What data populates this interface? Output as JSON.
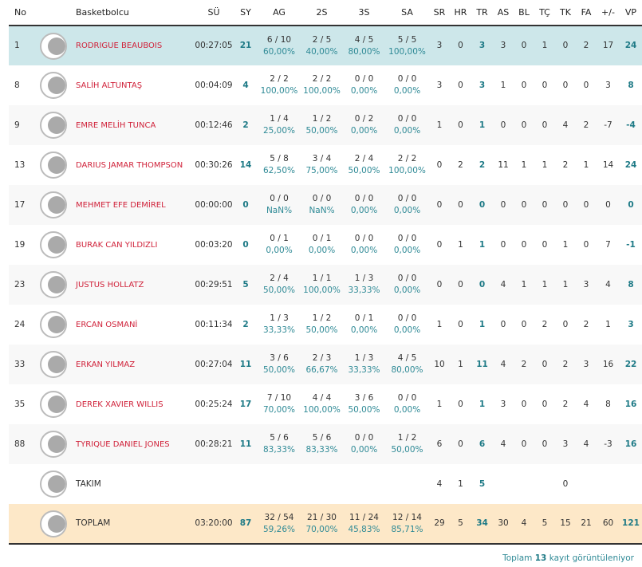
{
  "headers": [
    "No",
    "",
    "Basketbolcu",
    "SÜ",
    "SY",
    "AG",
    "2S",
    "3S",
    "SA",
    "SR",
    "HR",
    "TR",
    "AS",
    "BL",
    "TÇ",
    "TK",
    "FA",
    "+/-",
    "VP"
  ],
  "rows": [
    {
      "no": "1",
      "name": "RODRIGUE BEAUBOIS",
      "su": "00:27:05",
      "sy": "21",
      "ag": "6 / 10",
      "agp": "60,00%",
      "s2": "2 / 5",
      "s2p": "40,00%",
      "s3": "4 / 5",
      "s3p": "80,00%",
      "sa": "5 / 5",
      "sap": "100,00%",
      "sr": "3",
      "hr": "0",
      "tr": "3",
      "as": "3",
      "bl": "0",
      "tc": "1",
      "tk": "0",
      "fa": "2",
      "pm": "17",
      "vp": "24"
    },
    {
      "no": "8",
      "name": "SALİH ALTUNTAŞ",
      "su": "00:04:09",
      "sy": "4",
      "ag": "2 / 2",
      "agp": "100,00%",
      "s2": "2 / 2",
      "s2p": "100,00%",
      "s3": "0 / 0",
      "s3p": "0,00%",
      "sa": "0 / 0",
      "sap": "0,00%",
      "sr": "3",
      "hr": "0",
      "tr": "3",
      "as": "1",
      "bl": "0",
      "tc": "0",
      "tk": "0",
      "fa": "0",
      "pm": "3",
      "vp": "8"
    },
    {
      "no": "9",
      "name": "EMRE MELİH TUNCA",
      "su": "00:12:46",
      "sy": "2",
      "ag": "1 / 4",
      "agp": "25,00%",
      "s2": "1 / 2",
      "s2p": "50,00%",
      "s3": "0 / 2",
      "s3p": "0,00%",
      "sa": "0 / 0",
      "sap": "0,00%",
      "sr": "1",
      "hr": "0",
      "tr": "1",
      "as": "0",
      "bl": "0",
      "tc": "0",
      "tk": "4",
      "fa": "2",
      "pm": "-7",
      "vp": "-4"
    },
    {
      "no": "13",
      "name": "DARIUS JAMAR THOMPSON",
      "su": "00:30:26",
      "sy": "14",
      "ag": "5 / 8",
      "agp": "62,50%",
      "s2": "3 / 4",
      "s2p": "75,00%",
      "s3": "2 / 4",
      "s3p": "50,00%",
      "sa": "2 / 2",
      "sap": "100,00%",
      "sr": "0",
      "hr": "2",
      "tr": "2",
      "as": "11",
      "bl": "1",
      "tc": "1",
      "tk": "2",
      "fa": "1",
      "pm": "14",
      "vp": "24"
    },
    {
      "no": "17",
      "name": "MEHMET EFE DEMİREL",
      "su": "00:00:00",
      "sy": "0",
      "ag": "0 / 0",
      "agp": "NaN%",
      "s2": "0 / 0",
      "s2p": "NaN%",
      "s3": "0 / 0",
      "s3p": "0,00%",
      "sa": "0 / 0",
      "sap": "0,00%",
      "sr": "0",
      "hr": "0",
      "tr": "0",
      "as": "0",
      "bl": "0",
      "tc": "0",
      "tk": "0",
      "fa": "0",
      "pm": "0",
      "vp": "0"
    },
    {
      "no": "19",
      "name": "BURAK CAN YILDIZLI",
      "su": "00:03:20",
      "sy": "0",
      "ag": "0 / 1",
      "agp": "0,00%",
      "s2": "0 / 1",
      "s2p": "0,00%",
      "s3": "0 / 0",
      "s3p": "0,00%",
      "sa": "0 / 0",
      "sap": "0,00%",
      "sr": "0",
      "hr": "1",
      "tr": "1",
      "as": "0",
      "bl": "0",
      "tc": "0",
      "tk": "1",
      "fa": "0",
      "pm": "7",
      "vp": "-1"
    },
    {
      "no": "23",
      "name": "JUSTUS HOLLATZ",
      "su": "00:29:51",
      "sy": "5",
      "ag": "2 / 4",
      "agp": "50,00%",
      "s2": "1 / 1",
      "s2p": "100,00%",
      "s3": "1 / 3",
      "s3p": "33,33%",
      "sa": "0 / 0",
      "sap": "0,00%",
      "sr": "0",
      "hr": "0",
      "tr": "0",
      "as": "4",
      "bl": "1",
      "tc": "1",
      "tk": "1",
      "fa": "3",
      "pm": "4",
      "vp": "8"
    },
    {
      "no": "24",
      "name": "ERCAN OSMANİ",
      "su": "00:11:34",
      "sy": "2",
      "ag": "1 / 3",
      "agp": "33,33%",
      "s2": "1 / 2",
      "s2p": "50,00%",
      "s3": "0 / 1",
      "s3p": "0,00%",
      "sa": "0 / 0",
      "sap": "0,00%",
      "sr": "1",
      "hr": "0",
      "tr": "1",
      "as": "0",
      "bl": "0",
      "tc": "2",
      "tk": "0",
      "fa": "2",
      "pm": "1",
      "vp": "3"
    },
    {
      "no": "33",
      "name": "ERKAN YILMAZ",
      "su": "00:27:04",
      "sy": "11",
      "ag": "3 / 6",
      "agp": "50,00%",
      "s2": "2 / 3",
      "s2p": "66,67%",
      "s3": "1 / 3",
      "s3p": "33,33%",
      "sa": "4 / 5",
      "sap": "80,00%",
      "sr": "10",
      "hr": "1",
      "tr": "11",
      "as": "4",
      "bl": "2",
      "tc": "0",
      "tk": "2",
      "fa": "3",
      "pm": "16",
      "vp": "22"
    },
    {
      "no": "35",
      "name": "DEREK XAVIER WILLIS",
      "su": "00:25:24",
      "sy": "17",
      "ag": "7 / 10",
      "agp": "70,00%",
      "s2": "4 / 4",
      "s2p": "100,00%",
      "s3": "3 / 6",
      "s3p": "50,00%",
      "sa": "0 / 0",
      "sap": "0,00%",
      "sr": "1",
      "hr": "0",
      "tr": "1",
      "as": "3",
      "bl": "0",
      "tc": "0",
      "tk": "2",
      "fa": "4",
      "pm": "8",
      "vp": "16"
    },
    {
      "no": "88",
      "name": "TYRIQUE DANIEL JONES",
      "su": "00:28:21",
      "sy": "11",
      "ag": "5 / 6",
      "agp": "83,33%",
      "s2": "5 / 6",
      "s2p": "83,33%",
      "s3": "0 / 0",
      "s3p": "0,00%",
      "sa": "1 / 2",
      "sap": "50,00%",
      "sr": "6",
      "hr": "0",
      "tr": "6",
      "as": "4",
      "bl": "0",
      "tc": "0",
      "tk": "3",
      "fa": "4",
      "pm": "-3",
      "vp": "16"
    },
    {
      "no": "",
      "name": "TAKIM",
      "su": "",
      "sy": "",
      "ag": "",
      "agp": "",
      "s2": "",
      "s2p": "",
      "s3": "",
      "s3p": "",
      "sa": "",
      "sap": "",
      "sr": "4",
      "hr": "1",
      "tr": "5",
      "as": "",
      "bl": "",
      "tc": "",
      "tk": "0",
      "fa": "",
      "pm": "",
      "vp": ""
    },
    {
      "no": "",
      "name": "TOPLAM",
      "su": "03:20:00",
      "sy": "87",
      "ag": "32 / 54",
      "agp": "59,26%",
      "s2": "21 / 30",
      "s2p": "70,00%",
      "s3": "11 / 24",
      "s3p": "45,83%",
      "sa": "12 / 14",
      "sap": "85,71%",
      "sr": "29",
      "hr": "5",
      "tr": "34",
      "as": "30",
      "bl": "4",
      "tc": "5",
      "tk": "15",
      "fa": "21",
      "pm": "60",
      "vp": "121"
    }
  ],
  "footer": {
    "pre": "Toplam",
    "count": "13",
    "post": "kayıt görüntüleniyor"
  },
  "colors": {
    "highlight": "#cde7ea",
    "total": "#fde8c8",
    "player_name": "#d0223a",
    "accent": "#1e7a86"
  },
  "icons": {
    "team_logo": "team-logo-icon"
  }
}
